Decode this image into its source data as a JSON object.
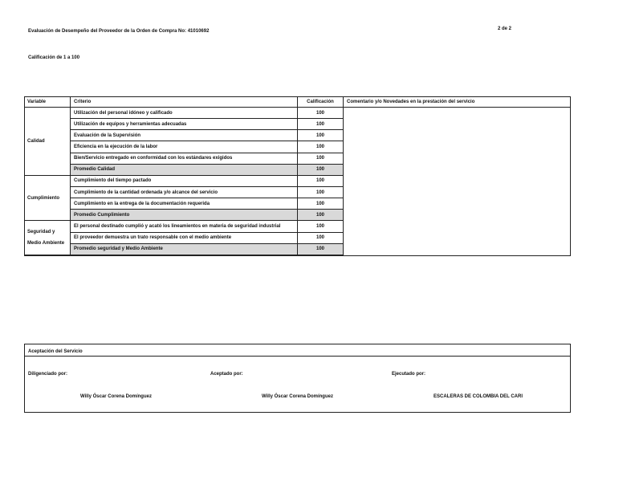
{
  "header": {
    "title": "Evaluación de Desempeño del Proveedor de la Orden de Compra No:  41010692",
    "page": "2 de   2",
    "scale": "Calificación de 1 a 100"
  },
  "table": {
    "headers": [
      "Variable",
      "Criterio",
      "Calificación",
      "Comentario y/o Novedades en la prestación del servicio"
    ],
    "groups": [
      {
        "variable": [
          "Calidad"
        ],
        "rows": [
          {
            "criterio": "Utilización del personal idóneo y calificado",
            "calificacion": 100
          },
          {
            "criterio": "Utilización de equipos y herramientas adecuadas",
            "calificacion": 100
          },
          {
            "criterio": "Evaluación de la Supervisión",
            "calificacion": 100
          },
          {
            "criterio": "Eficiencia en la ejecución de la labor",
            "calificacion": 100
          },
          {
            "criterio": "Bien/Servicio entregado en conformidad con los estándares exigidos",
            "calificacion": 100
          },
          {
            "criterio": "Promedio Calidad",
            "calificacion": 100,
            "average": true
          }
        ]
      },
      {
        "variable": [
          "Cumplimiento"
        ],
        "rows": [
          {
            "criterio": "Cumplimiento del tiempo pactado",
            "calificacion": 100
          },
          {
            "criterio": "Cumplimiento de la cantidad ordenada y/o alcance del servicio",
            "calificacion": 100
          },
          {
            "criterio": "Cumplimiento en la entrega de la documentación requerida",
            "calificacion": 100
          },
          {
            "criterio": "Promedio Cumplimiento",
            "calificacion": 100,
            "average": true
          }
        ]
      },
      {
        "variable": [
          "Seguridad y",
          "Medio  Ambiente"
        ],
        "rows": [
          {
            "criterio": "El personal  destinado cumplió y acató los lineamientos en materia de seguridad industrial",
            "calificacion": 100
          },
          {
            "criterio": "El proveedor demuestra un trato responsable con el medio ambiente",
            "calificacion": 100
          },
          {
            "criterio": "Promedio seguridad y Medio Ambiente",
            "calificacion": 100,
            "average": true
          }
        ]
      }
    ]
  },
  "acceptance": {
    "title": "Aceptación del Servicio",
    "labels": [
      "Diligenciado por:",
      "Aceptado por:",
      "Ejecutado por:"
    ],
    "names": [
      "Willy Óscar Corena Domínguez",
      "Willy Óscar Corena Domínguez",
      "ESCALERAS DE COLOMBIA DEL CARI"
    ]
  }
}
